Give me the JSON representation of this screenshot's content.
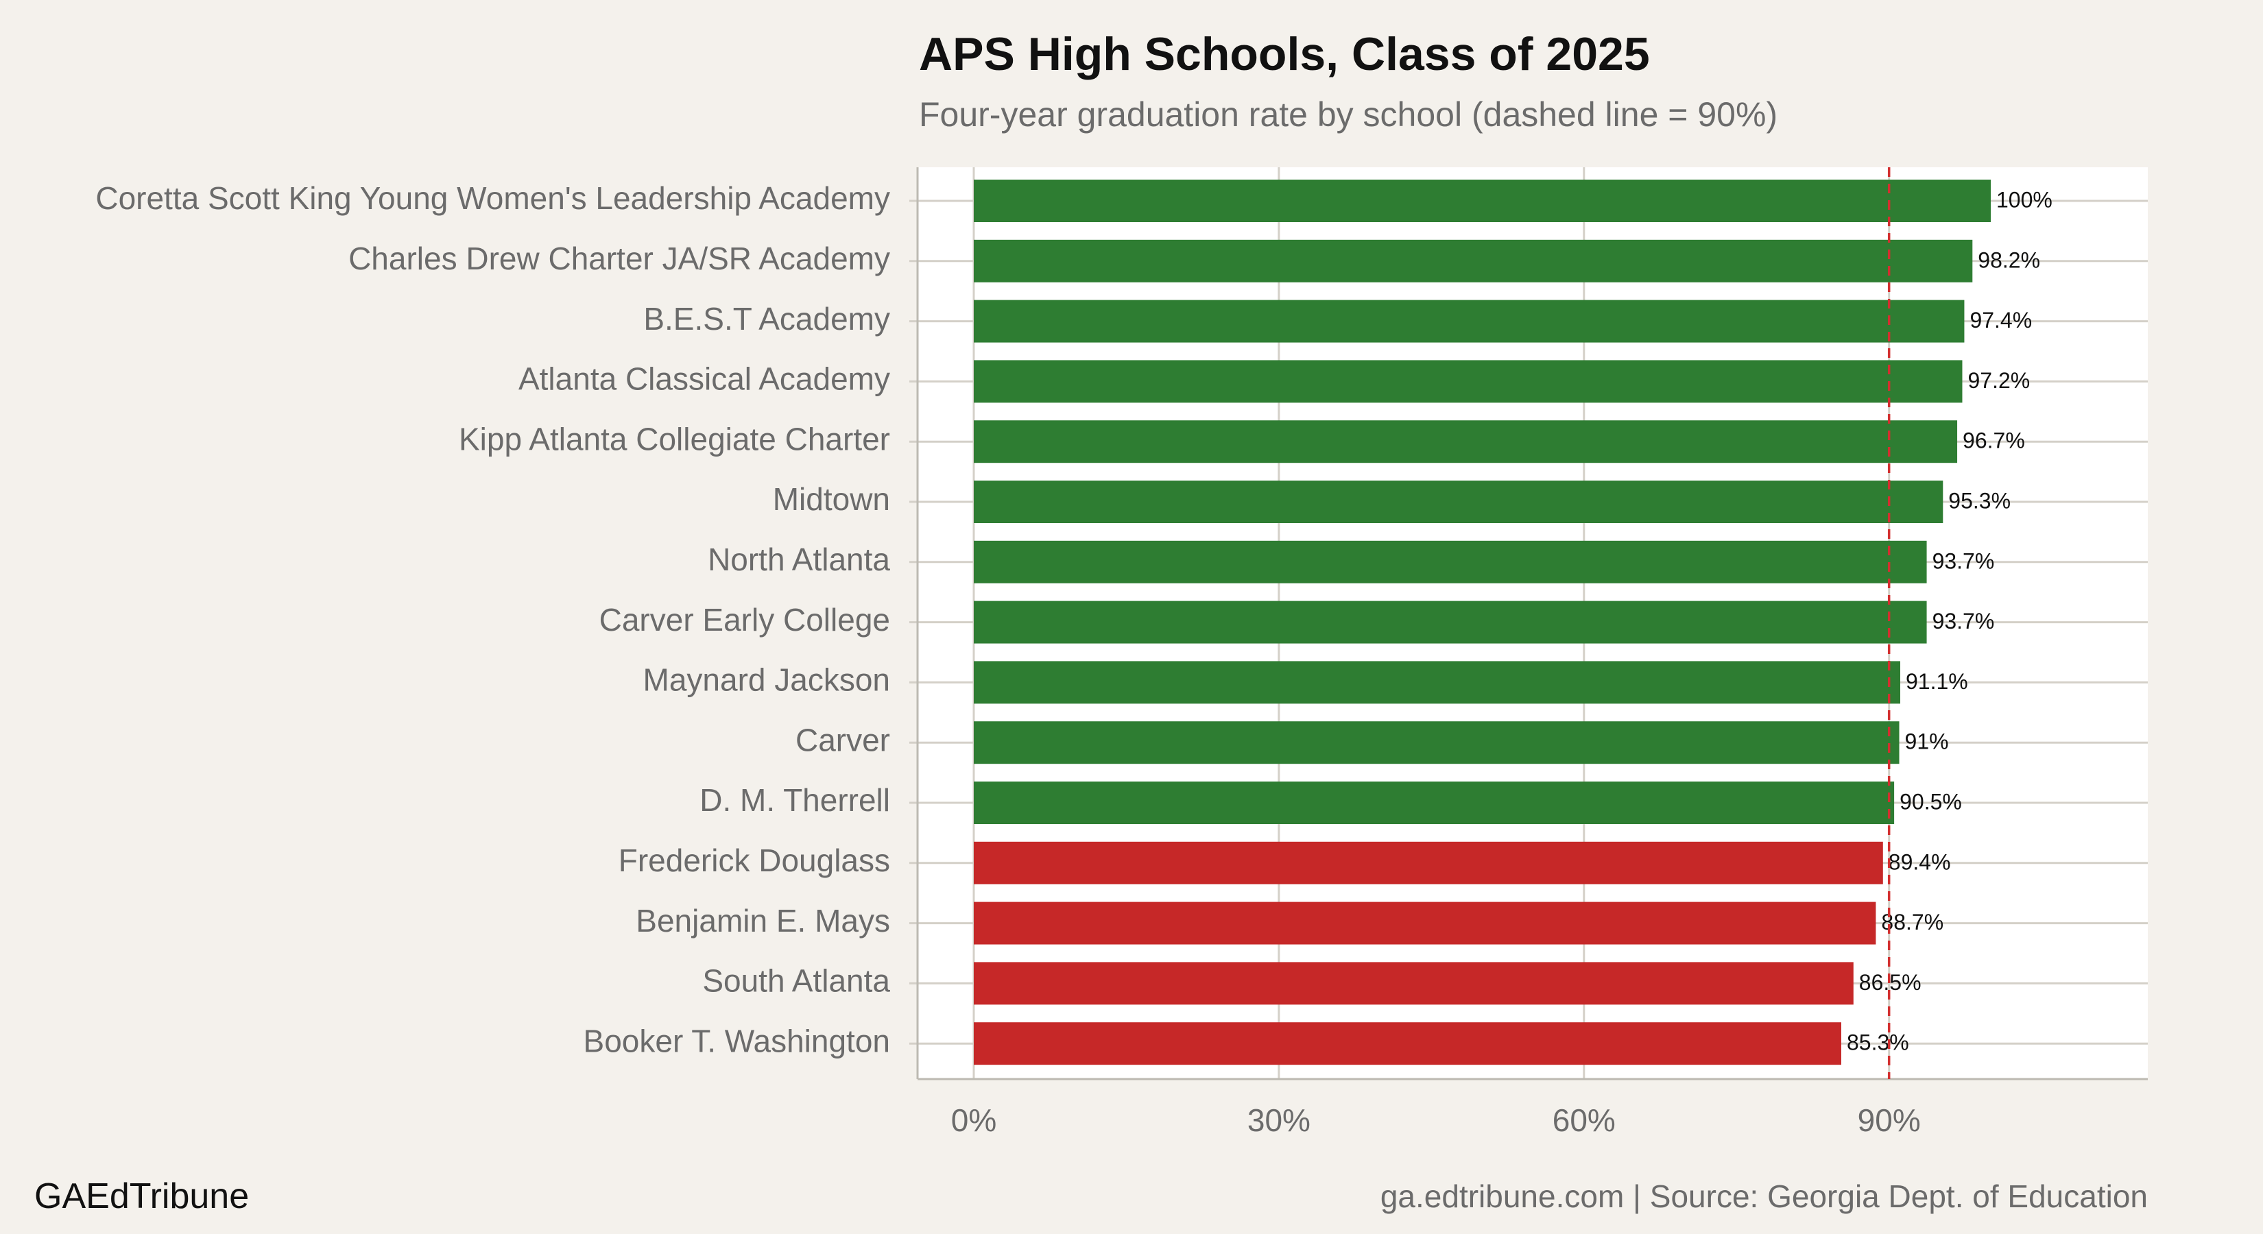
{
  "header": {
    "title": "APS High Schools, Class of 2025",
    "subtitle": "Four-year graduation rate by school (dashed line = 90%)"
  },
  "footer": {
    "brand": "GAEdTribune",
    "source": "ga.edtribune.com | Source: Georgia Dept. of Education"
  },
  "colors": {
    "above_threshold": "#2e7d32",
    "below_threshold": "#c62828",
    "threshold_line": "#d32f2f",
    "grid": "#d4d0c8",
    "panel": "#ffffff",
    "background": "#f4f1ec"
  },
  "chart_data": {
    "type": "bar",
    "orientation": "horizontal",
    "title": "APS High Schools, Class of 2025",
    "subtitle": "Four-year graduation rate by school (dashed line = 90%)",
    "xlabel": "",
    "ylabel": "",
    "xlim": [
      0,
      115
    ],
    "x_ticks": [
      0,
      30,
      60,
      90
    ],
    "x_tick_labels": [
      "0%",
      "30%",
      "60%",
      "90%"
    ],
    "threshold": 90,
    "grid": true,
    "legend": "none",
    "categories": [
      "Coretta Scott King Young Women's Leadership Academy",
      "Charles Drew Charter JA/SR Academy",
      "B.E.S.T Academy",
      "Atlanta Classical Academy",
      "Kipp Atlanta Collegiate Charter",
      "Midtown",
      "North Atlanta",
      "Carver Early College",
      "Maynard Jackson",
      "Carver",
      "D. M. Therrell",
      "Frederick Douglass",
      "Benjamin E. Mays",
      "South Atlanta",
      "Booker T. Washington"
    ],
    "values": [
      100,
      98.2,
      97.4,
      97.2,
      96.7,
      95.3,
      93.7,
      93.7,
      91.1,
      91,
      90.5,
      89.4,
      88.7,
      86.5,
      85.3
    ],
    "value_labels": [
      "100%",
      "98.2%",
      "97.4%",
      "97.2%",
      "96.7%",
      "95.3%",
      "93.7%",
      "93.7%",
      "91.1%",
      "91%",
      "90.5%",
      "89.4%",
      "88.7%",
      "86.5%",
      "85.3%"
    ]
  }
}
